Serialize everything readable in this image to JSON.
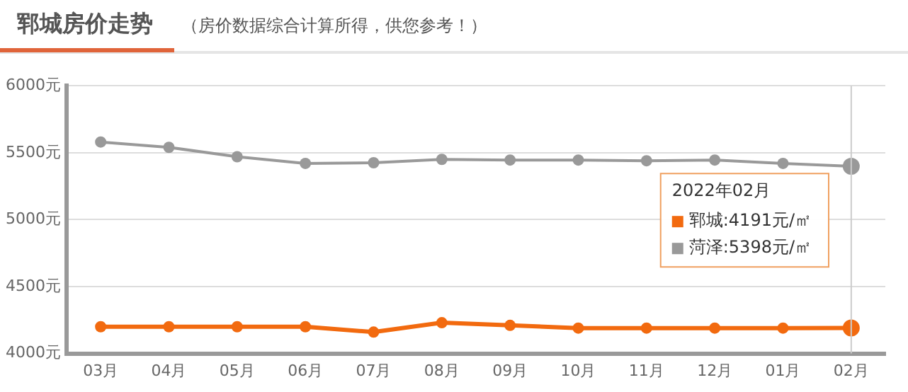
{
  "chart_data": {
    "type": "line",
    "title": "郓城房价走势",
    "subtitle": "（房价数据综合计算所得，供您参考！）",
    "categories": [
      "03月",
      "04月",
      "05月",
      "06月",
      "07月",
      "08月",
      "09月",
      "10月",
      "11月",
      "12月",
      "01月",
      "02月"
    ],
    "series": [
      {
        "name": "郓城",
        "color": "#f26a0f",
        "values": [
          4200,
          4200,
          4200,
          4200,
          4160,
          4230,
          4210,
          4190,
          4190,
          4190,
          4190,
          4191
        ]
      },
      {
        "name": "菏泽",
        "color": "#999999",
        "values": [
          5580,
          5540,
          5470,
          5420,
          5425,
          5450,
          5445,
          5445,
          5440,
          5445,
          5420,
          5398
        ]
      }
    ],
    "annotations": [
      "2022年02月",
      ":4191元/㎡",
      ":5398元/㎡"
    ],
    "ref_lines": [
      {
        "axis": "x",
        "value": "02月",
        "color": "#cccccc"
      }
    ],
    "ylim": [
      4000,
      6000
    ],
    "yticks": [
      {
        "value": 4000,
        "label": "4000元"
      },
      {
        "value": 4500,
        "label": "4500元"
      },
      {
        "value": 5000,
        "label": "5000元"
      },
      {
        "value": 5500,
        "label": "5500元"
      },
      {
        "value": 6000,
        "label": "6000元"
      }
    ],
    "grid": "y",
    "legend": "right",
    "marker": "circle",
    "line_style": "solid"
  }
}
